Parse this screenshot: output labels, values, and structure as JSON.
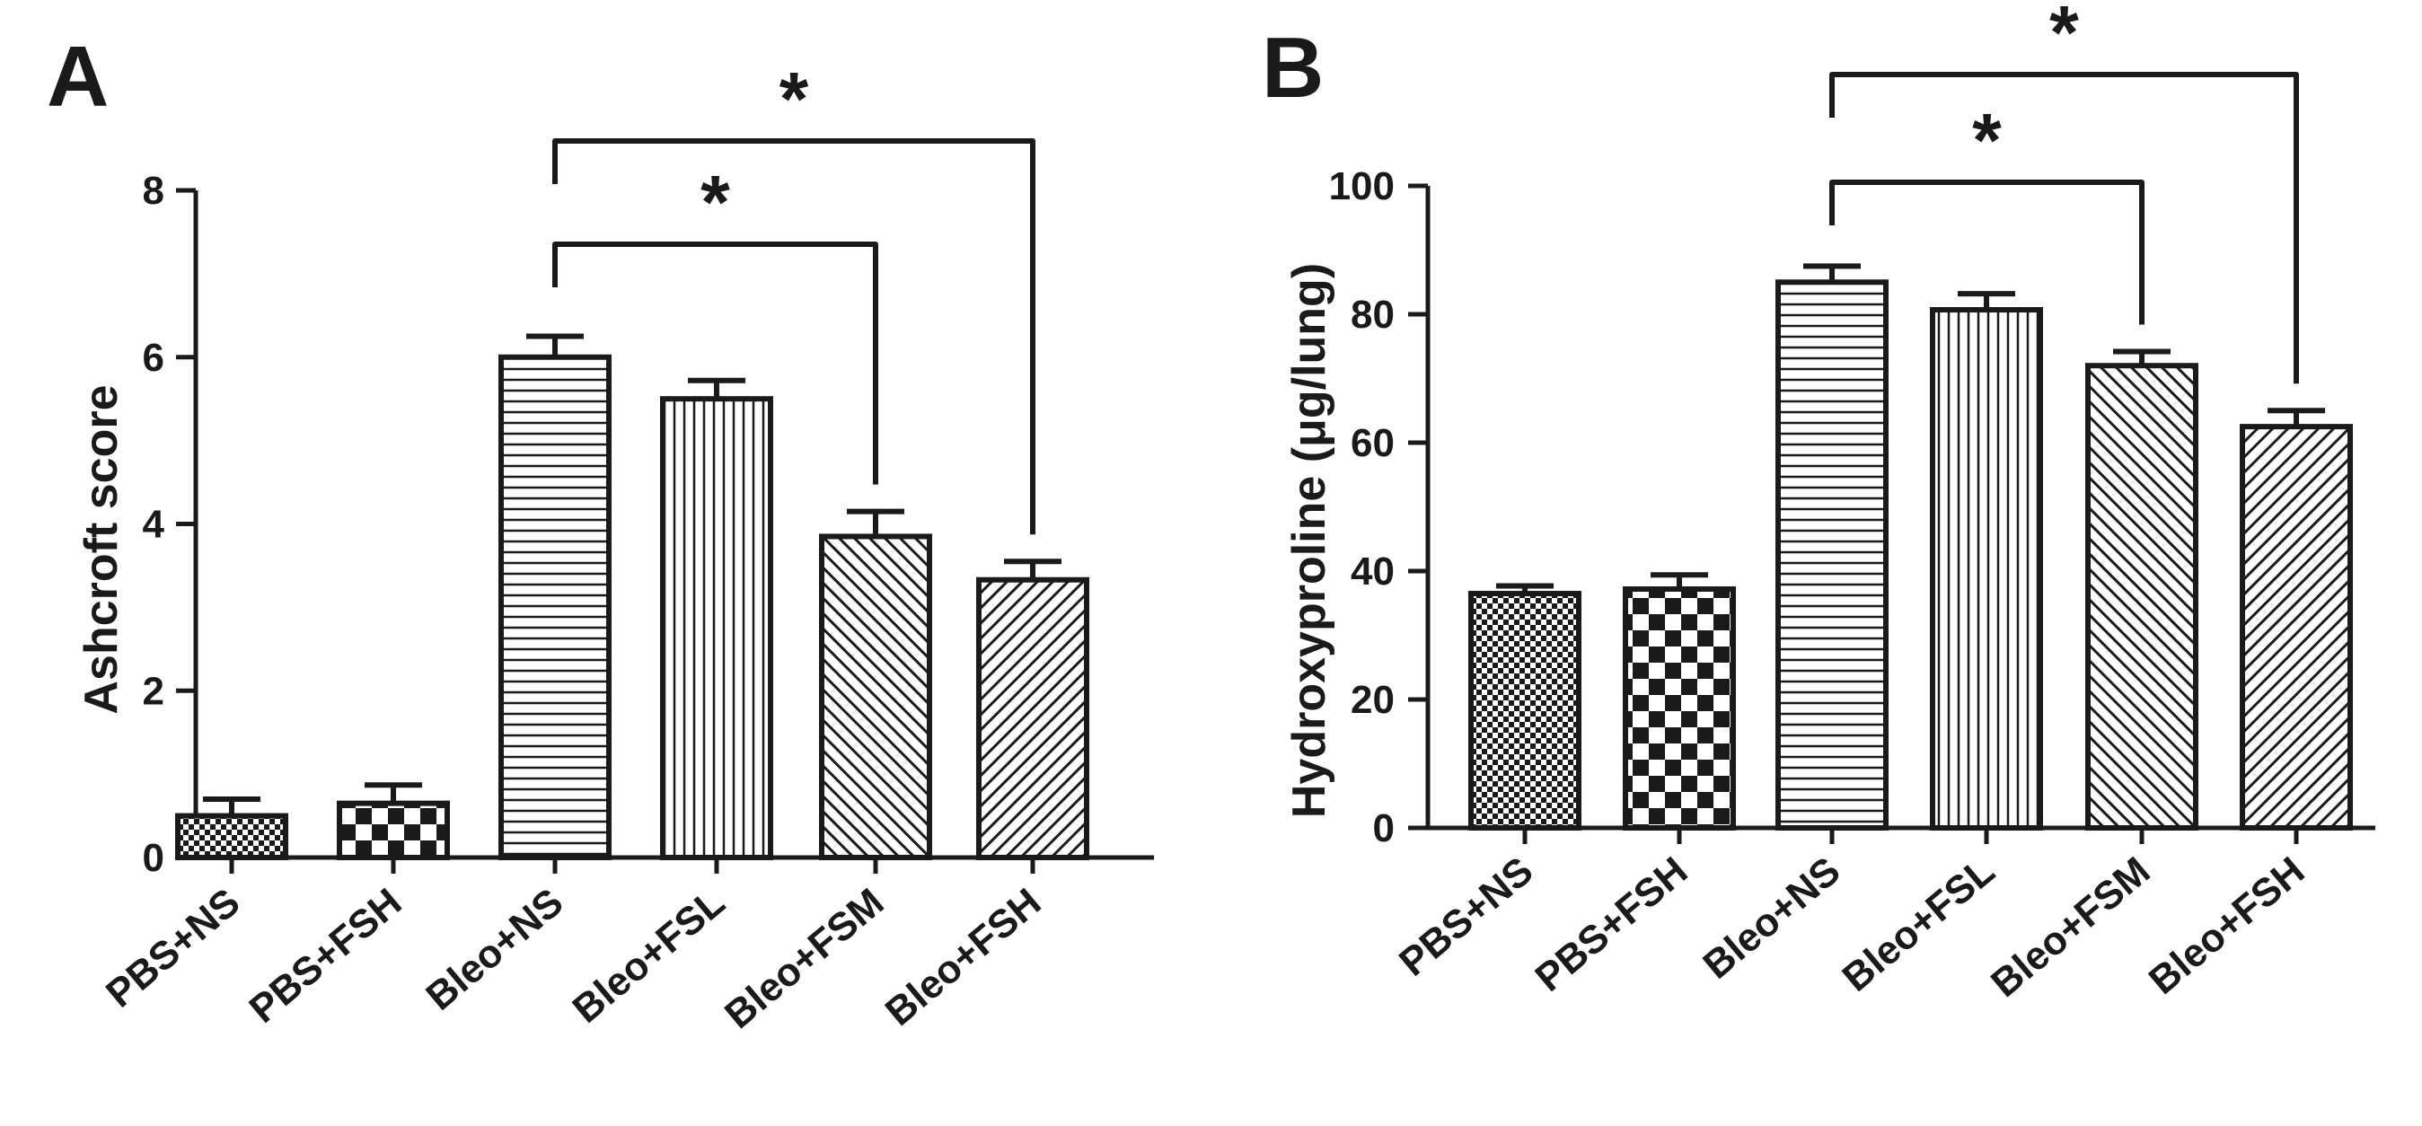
{
  "colors": {
    "ink": "#1a1a1a",
    "background": "#ffffff"
  },
  "chart_data": [
    {
      "panel": "A",
      "type": "bar",
      "title": "",
      "xlabel": "",
      "ylabel": "Ashcroft score",
      "ylim": [
        0,
        8
      ],
      "yticks": [
        0,
        2,
        4,
        6,
        8
      ],
      "categories": [
        "PBS+NS",
        "PBS+FSH",
        "Bleo+NS",
        "Bleo+FSL",
        "Bleo+FSM",
        "Bleo+FSH"
      ],
      "patterns": [
        "fine-check",
        "big-check",
        "horizontal",
        "vertical",
        "diagonal-up",
        "diagonal-down"
      ],
      "values": [
        0.5,
        0.65,
        6.0,
        5.5,
        3.85,
        3.33
      ],
      "errors": [
        0.2,
        0.22,
        0.25,
        0.22,
        0.3,
        0.22
      ],
      "significance": [
        {
          "from": 2,
          "to": 4,
          "label": "*",
          "level": 1
        },
        {
          "from": 2,
          "to": 5,
          "label": "*",
          "level": 2
        }
      ]
    },
    {
      "panel": "B",
      "type": "bar",
      "title": "",
      "xlabel": "",
      "ylabel": "Hydroxyproline (μg/lung)",
      "ylim": [
        0,
        100
      ],
      "yticks": [
        0,
        20,
        40,
        60,
        80,
        100
      ],
      "categories": [
        "PBS+NS",
        "PBS+FSH",
        "Bleo+NS",
        "Bleo+FSL",
        "Bleo+FSM",
        "Bleo+FSH"
      ],
      "patterns": [
        "fine-check",
        "big-check",
        "horizontal",
        "vertical",
        "diagonal-up",
        "diagonal-down"
      ],
      "values": [
        36.5,
        37.2,
        85.0,
        80.7,
        72.0,
        62.5
      ],
      "errors": [
        1.2,
        2.2,
        2.5,
        2.5,
        2.2,
        2.5
      ],
      "significance": [
        {
          "from": 2,
          "to": 4,
          "label": "*",
          "level": 1
        },
        {
          "from": 2,
          "to": 5,
          "label": "*",
          "level": 2
        }
      ]
    }
  ]
}
